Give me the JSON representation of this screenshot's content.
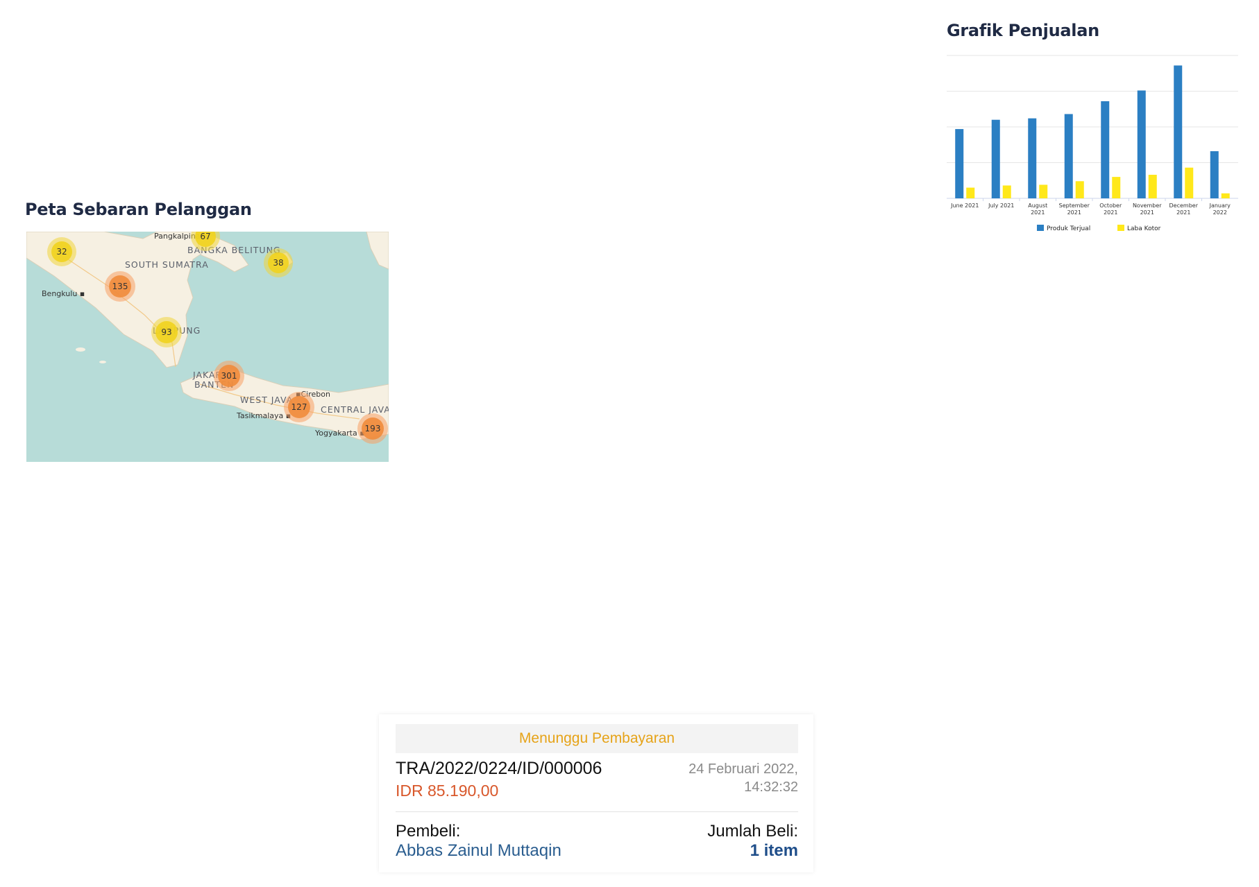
{
  "sales_chart": {
    "heading": "Grafik Penjualan",
    "chart_data": {
      "type": "bar",
      "title": "Grafik Penjualan",
      "categories": [
        [
          "June 2021"
        ],
        [
          "July 2021"
        ],
        [
          "August",
          "2021"
        ],
        [
          "September",
          "2021"
        ],
        [
          "October",
          "2021"
        ],
        [
          "November",
          "2021"
        ],
        [
          "December",
          "2021"
        ],
        [
          "January",
          "2022"
        ]
      ],
      "series": [
        {
          "name": "Produk Terjual",
          "color": "#2b7fc3",
          "values": [
            97,
            110,
            112,
            118,
            136,
            151,
            186,
            66
          ]
        },
        {
          "name": "Laba Kotor",
          "color": "#ffe81a",
          "values": [
            15,
            18,
            19,
            24,
            30,
            33,
            43,
            7
          ]
        }
      ],
      "ylim": [
        0,
        200
      ],
      "grid": true,
      "xlabel": "",
      "ylabel": "",
      "legend_position": "bottom-center"
    }
  },
  "customer_map": {
    "heading": "Peta Sebaran Pelanggan",
    "region_labels": [
      "SOUTH SUMATRA",
      "BANGKA BELITUNG",
      "LAMPUNG",
      "JAKARTA",
      "BANTEN",
      "WEST JAVA",
      "CENTRAL JAVA"
    ],
    "city_labels": [
      "Pangkalpinang",
      "Bengkulu",
      "Cirebon",
      "Tasikmalaya",
      "Yogyakarta"
    ],
    "clusters": [
      {
        "count": "32",
        "level": "yellow"
      },
      {
        "count": "67",
        "level": "yellow"
      },
      {
        "count": "38",
        "level": "yellow"
      },
      {
        "count": "135",
        "level": "orange"
      },
      {
        "count": "93",
        "level": "yellow"
      },
      {
        "count": "301",
        "level": "orange"
      },
      {
        "count": "127",
        "level": "orange"
      },
      {
        "count": "193",
        "level": "orange"
      }
    ],
    "colors": {
      "sea": "#a9d6d3",
      "land": "#f6f0e2",
      "cluster_small": "#f1d31e",
      "cluster_large": "#f08c3c"
    }
  },
  "order_card": {
    "status": "Menunggu Pembayaran",
    "order_id": "TRA/2022/0224/ID/000006",
    "amount": "IDR 85.190,00",
    "date": "24 Februari 2022,",
    "time": "14:32:32",
    "buyer_label": "Pembeli:",
    "buyer_name": "Abbas Zainul Muttaqin",
    "qty_label": "Jumlah Beli:",
    "qty_value": "1 item",
    "colors": {
      "status": "#e6a318",
      "amount": "#d8572a",
      "buyer_name": "#2a5d8f"
    }
  }
}
